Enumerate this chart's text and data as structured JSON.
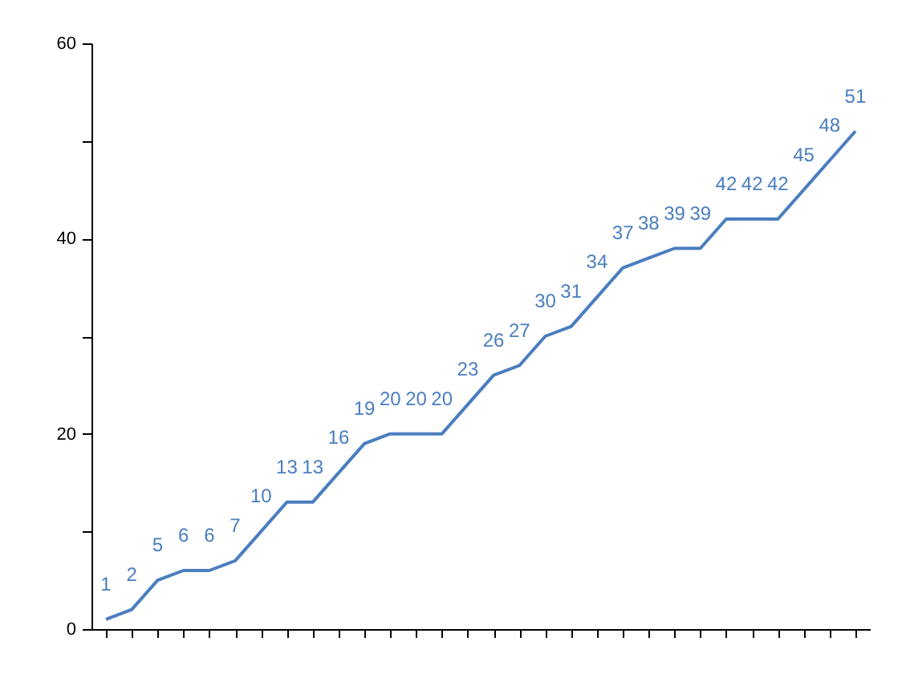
{
  "chart_data": {
    "type": "line",
    "categories": [
      null,
      null,
      null,
      null,
      null,
      null,
      null,
      null,
      null,
      null,
      null,
      null,
      null,
      null,
      null,
      null,
      null,
      null,
      null,
      null,
      null,
      null,
      null,
      null,
      null,
      null,
      null,
      null,
      null,
      null
    ],
    "series": [
      {
        "color": "#4a7ebf",
        "values": [
          1,
          2,
          5,
          6,
          6,
          7,
          10,
          13,
          13,
          16,
          19,
          20,
          20,
          20,
          23,
          26,
          27,
          30,
          31,
          34,
          37,
          38,
          39,
          39,
          42,
          42,
          42,
          45,
          48,
          51
        ]
      }
    ],
    "ylim": [
      0,
      60
    ],
    "yticks": [
      0,
      {
        "value": 10,
        "label": null
      },
      20,
      {
        "value": 30,
        "label": null
      },
      40,
      {
        "value": 50,
        "label": null
      },
      60
    ],
    "data_labels": true,
    "tick_labels": "y",
    "grid": false,
    "marker": "none",
    "line_style": "solid"
  }
}
